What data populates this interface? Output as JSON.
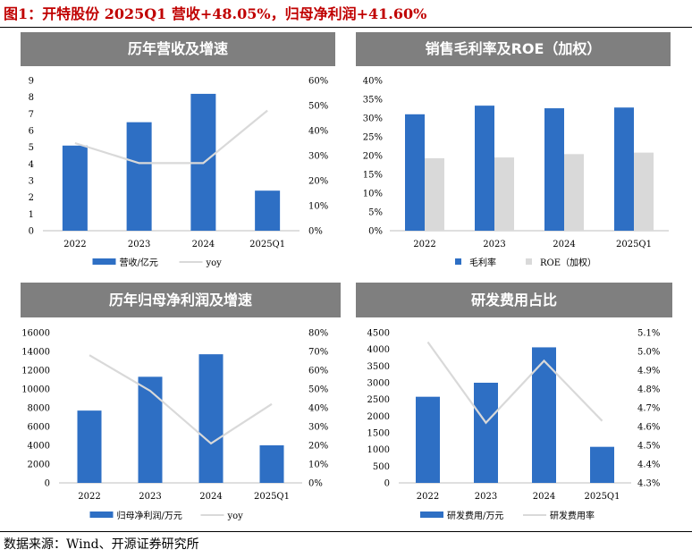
{
  "figure": {
    "title": "图1：开特股份 2025Q1 营收+48.05%，归母净利润+41.60%",
    "source": "数据来源：Wind、开源证券研究所",
    "title_color": "#c00000",
    "bar_color": "#2e6fc4",
    "bar_color_secondary": "#d9d9d9",
    "line_color": "#d9d9d9",
    "banner_color": "#7f7f7f"
  },
  "chart_data": [
    {
      "id": "revenue",
      "panel_title": "历年营收及增速",
      "type": "bar",
      "categories": [
        "2022",
        "2023",
        "2024",
        "2025Q1"
      ],
      "series": [
        {
          "name": "营收/亿元",
          "kind": "bar",
          "axis": "left",
          "values": [
            5.1,
            6.5,
            8.2,
            2.4
          ]
        },
        {
          "name": "yoy",
          "kind": "line",
          "axis": "right",
          "values": [
            0.35,
            0.27,
            0.27,
            0.48
          ]
        }
      ],
      "ylim": [
        0,
        9
      ],
      "yticks": [
        0,
        1,
        2,
        3,
        4,
        5,
        6,
        7,
        8,
        9
      ],
      "y2lim": [
        0,
        0.6
      ],
      "y2ticks": [
        "0%",
        "10%",
        "20%",
        "30%",
        "40%",
        "50%",
        "60%"
      ]
    },
    {
      "id": "margin",
      "panel_title": "销售毛利率及ROE（加权）",
      "type": "bar",
      "categories": [
        "2022",
        "2023",
        "2024",
        "2025Q1"
      ],
      "series": [
        {
          "name": "毛利率",
          "kind": "bar",
          "axis": "left",
          "values": [
            0.31,
            0.333,
            0.326,
            0.328
          ]
        },
        {
          "name": "ROE（加权）",
          "kind": "bar",
          "axis": "left",
          "values": [
            0.193,
            0.195,
            0.204,
            0.208
          ]
        }
      ],
      "ylim": [
        0,
        0.4
      ],
      "yticks": [
        "0%",
        "5%",
        "10%",
        "15%",
        "20%",
        "25%",
        "30%",
        "35%",
        "40%"
      ]
    },
    {
      "id": "netprofit",
      "panel_title": "历年归母净利润及增速",
      "type": "bar",
      "categories": [
        "2022",
        "2023",
        "2024",
        "2025Q1"
      ],
      "series": [
        {
          "name": "归母净利润/万元",
          "kind": "bar",
          "axis": "left",
          "values": [
            7700,
            11300,
            13700,
            4000
          ]
        },
        {
          "name": "yoy",
          "kind": "line",
          "axis": "right",
          "values": [
            0.68,
            0.49,
            0.21,
            0.42
          ]
        }
      ],
      "ylim": [
        0,
        16000
      ],
      "yticks": [
        0,
        2000,
        4000,
        6000,
        8000,
        10000,
        12000,
        14000,
        16000
      ],
      "y2lim": [
        0,
        0.8
      ],
      "y2ticks": [
        "0%",
        "10%",
        "20%",
        "30%",
        "40%",
        "50%",
        "60%",
        "70%",
        "80%"
      ]
    },
    {
      "id": "rd",
      "panel_title": "研发费用占比",
      "type": "bar",
      "categories": [
        "2022",
        "2023",
        "2024",
        "2025Q1"
      ],
      "series": [
        {
          "name": "研发费用/万元",
          "kind": "bar",
          "axis": "left",
          "values": [
            2580,
            3000,
            4060,
            1080
          ]
        },
        {
          "name": "研发费用率",
          "kind": "line",
          "axis": "right",
          "values": [
            0.0505,
            0.0462,
            0.0495,
            0.0463
          ]
        }
      ],
      "ylim": [
        0,
        4500
      ],
      "yticks": [
        0,
        500,
        1000,
        1500,
        2000,
        2500,
        3000,
        3500,
        4000,
        4500
      ],
      "y2lim": [
        0.043,
        0.051
      ],
      "y2ticks": [
        "4.3%",
        "4.4%",
        "4.5%",
        "4.6%",
        "4.7%",
        "4.8%",
        "4.9%",
        "5.0%",
        "5.1%"
      ]
    }
  ]
}
